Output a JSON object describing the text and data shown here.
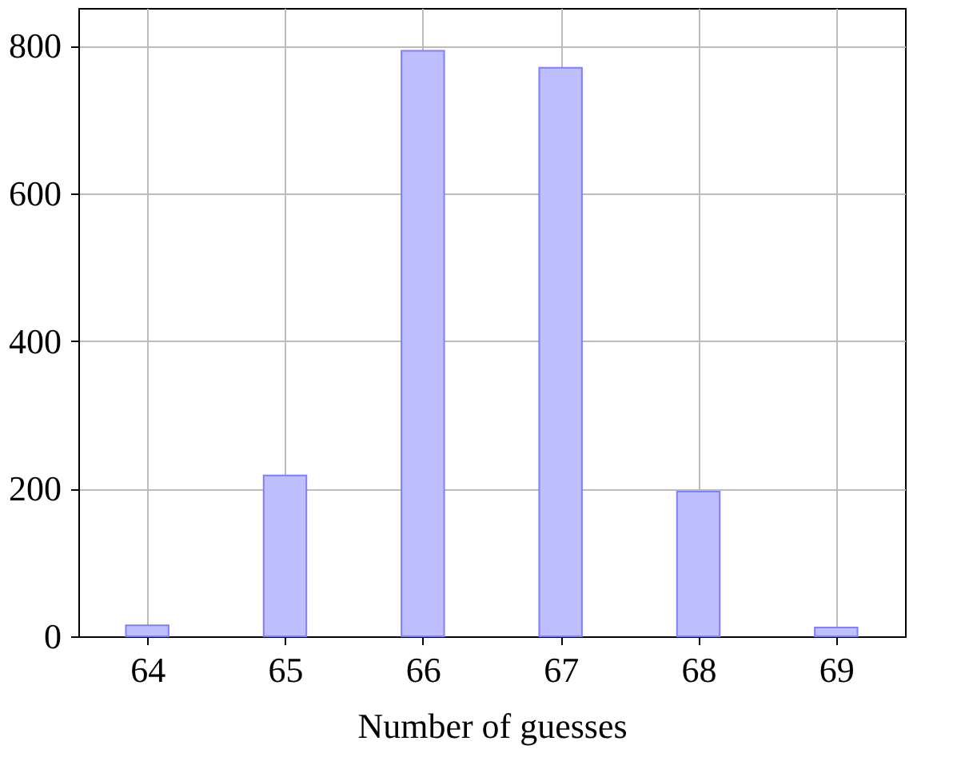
{
  "chart_data": {
    "type": "bar",
    "xlabel": "Number of guesses",
    "x": [
      64,
      65,
      66,
      67,
      68,
      69
    ],
    "values": [
      15,
      218,
      793,
      770,
      196,
      12
    ],
    "color": "#bfbfff",
    "xlim": [
      63.5,
      69.5
    ],
    "xticks": [
      64,
      65,
      66,
      67,
      68,
      69
    ],
    "ylim": [
      0,
      851
    ],
    "yticks": [
      0,
      200,
      400,
      600,
      800
    ],
    "grid": true
  }
}
